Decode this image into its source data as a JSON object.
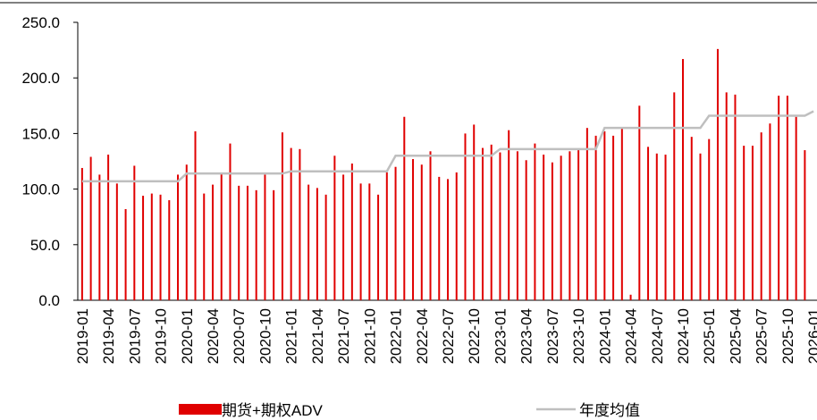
{
  "chart_data": {
    "type": "bar_line",
    "categories": [
      "2019-01",
      null,
      null,
      "2019-04",
      null,
      null,
      "2019-07",
      null,
      null,
      "2019-10",
      null,
      null,
      "2020-01",
      null,
      null,
      "2020-04",
      null,
      null,
      "2020-07",
      null,
      null,
      "2020-10",
      null,
      null,
      "2021-01",
      null,
      null,
      "2021-04",
      null,
      null,
      "2021-07",
      null,
      null,
      "2021-10",
      null,
      null,
      "2022-01",
      null,
      null,
      "2022-04",
      null,
      null,
      "2022-07",
      null,
      null,
      "2022-10",
      null,
      null,
      "2023-01",
      null,
      null,
      "2023-04",
      null,
      null,
      "2023-07",
      null,
      null,
      "2023-10",
      null,
      null,
      "2024-01",
      null,
      null,
      "2024-04",
      null,
      null,
      "2024-07",
      null,
      null,
      "2024-10",
      null,
      null,
      "2025-01",
      null,
      null,
      "2025-04",
      null,
      null,
      "2025-07",
      null,
      null,
      "2025-10",
      null,
      null,
      "2026-01"
    ],
    "series": [
      {
        "name": "期货+期权ADV",
        "color": "#e00000",
        "kind": "bar",
        "values": [
          119,
          129,
          113,
          131,
          105,
          82,
          121,
          94,
          96,
          95,
          90,
          113,
          122,
          152,
          96,
          104,
          114,
          141,
          103,
          103,
          99,
          113,
          99,
          151,
          137,
          136,
          104,
          101,
          95,
          130,
          113,
          123,
          105,
          105,
          95,
          115,
          120,
          165,
          127,
          122,
          134,
          111,
          109,
          115,
          150,
          158,
          137,
          140,
          133,
          153,
          134,
          126,
          141,
          131,
          124,
          130,
          134,
          135,
          155,
          148,
          152,
          148,
          155,
          5,
          175,
          138,
          132,
          131,
          187,
          217,
          147,
          132,
          145,
          226,
          187,
          185,
          139,
          139,
          151,
          159,
          184,
          184,
          165,
          135,
          null
        ]
      },
      {
        "name": "年度均值",
        "color": "#bfbfbf",
        "kind": "line",
        "values": [
          107,
          107,
          107,
          107,
          107,
          107,
          107,
          107,
          107,
          107,
          107,
          107,
          114,
          114,
          114,
          114,
          114,
          114,
          114,
          114,
          114,
          114,
          114,
          114,
          116,
          116,
          116,
          116,
          116,
          116,
          116,
          116,
          116,
          116,
          116,
          116,
          130,
          130,
          130,
          130,
          130,
          130,
          130,
          130,
          130,
          130,
          130,
          130,
          136,
          136,
          136,
          136,
          136,
          136,
          136,
          136,
          136,
          136,
          136,
          136,
          155,
          155,
          155,
          155,
          155,
          155,
          155,
          155,
          155,
          155,
          155,
          155,
          166,
          166,
          166,
          166,
          166,
          166,
          166,
          166,
          166,
          166,
          166,
          166,
          170
        ]
      }
    ],
    "ylim": [
      0,
      250
    ],
    "yticks": [
      {
        "value": 0,
        "label": "0.0"
      },
      {
        "value": 50,
        "label": "50.0"
      },
      {
        "value": 100,
        "label": "100.0"
      },
      {
        "value": 150,
        "label": "150.0"
      },
      {
        "value": 200,
        "label": "200.0"
      },
      {
        "value": 250,
        "label": "250.0"
      }
    ],
    "legend": "bottom"
  }
}
